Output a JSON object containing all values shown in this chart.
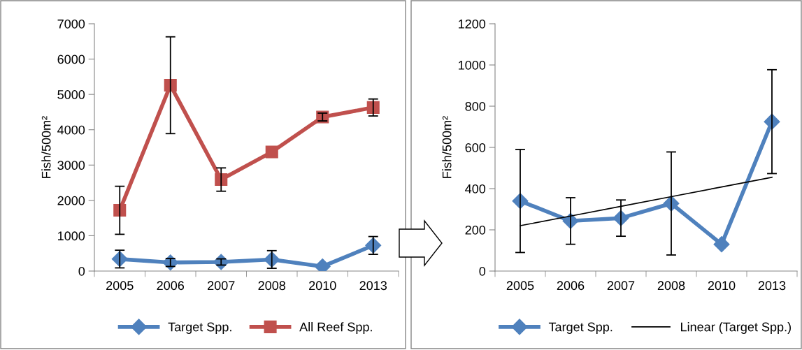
{
  "chart_data": [
    {
      "type": "line",
      "categories": [
        "2005",
        "2006",
        "2007",
        "2008",
        "2010",
        "2013"
      ],
      "ylabel": "Fish/500m²",
      "ylim": [
        0,
        7000
      ],
      "yticks": [
        0,
        1000,
        2000,
        3000,
        4000,
        5000,
        6000,
        7000
      ],
      "grid": false,
      "legend": "bottom",
      "series": [
        {
          "name": "Target Spp.",
          "color": "#4f81bd",
          "marker": "diamond",
          "values": [
            340,
            243,
            257,
            328,
            130,
            725
          ],
          "errors": [
            250,
            113,
            88,
            250,
            null,
            252
          ]
        },
        {
          "name": "All Reef Spp.",
          "color": "#c0504d",
          "marker": "square",
          "values": [
            1720,
            5260,
            2590,
            3370,
            4360,
            4630
          ],
          "errors": [
            680,
            1370,
            330,
            null,
            110,
            240
          ]
        }
      ]
    },
    {
      "type": "line",
      "categories": [
        "2005",
        "2006",
        "2007",
        "2008",
        "2010",
        "2013"
      ],
      "ylabel": "Fish/500m²",
      "ylim": [
        0,
        1200
      ],
      "yticks": [
        0,
        200,
        400,
        600,
        800,
        1000,
        1200
      ],
      "grid": false,
      "legend": "bottom",
      "series": [
        {
          "name": "Target Spp.",
          "color": "#4f81bd",
          "marker": "diamond",
          "values": [
            340,
            243,
            257,
            328,
            130,
            725
          ],
          "errors": [
            250,
            113,
            88,
            250,
            null,
            252
          ]
        },
        {
          "name": "Linear (Target Spp.)",
          "color": "#000000",
          "marker": "none",
          "values": [
            220,
            267,
            314,
            361,
            408,
            455
          ]
        }
      ]
    }
  ]
}
